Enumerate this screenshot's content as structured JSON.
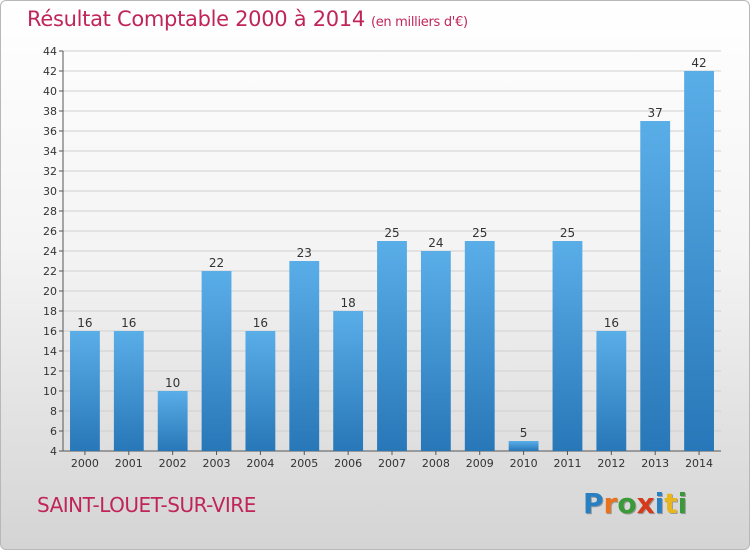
{
  "title": "Résultat Comptable 2000 à 2014",
  "subtitle": "(en milliers d'€)",
  "location": "SAINT-LOUET-SUR-VIRE",
  "brand": {
    "name": "Proxiti",
    "letter_colors": [
      "#2a7fc1",
      "#e8731c",
      "#3a9a3a",
      "#d63a1c",
      "#2a7fc1",
      "#e8b61c",
      "#3a9a3a"
    ]
  },
  "colors": {
    "title": "#c0255a",
    "bar_top": "#5aaee8",
    "bar_bottom": "#2877b8"
  },
  "chart_data": {
    "type": "bar",
    "categories": [
      "2000",
      "2001",
      "2002",
      "2003",
      "2004",
      "2005",
      "2006",
      "2007",
      "2008",
      "2009",
      "2010",
      "2011",
      "2012",
      "2013",
      "2014"
    ],
    "values": [
      16,
      16,
      10,
      22,
      16,
      23,
      18,
      25,
      24,
      25,
      5,
      25,
      16,
      37,
      42
    ],
    "ylim": [
      4,
      44
    ],
    "yticks": [
      4,
      6,
      8,
      10,
      12,
      14,
      16,
      18,
      20,
      22,
      24,
      26,
      28,
      30,
      32,
      34,
      36,
      38,
      40,
      42,
      44
    ],
    "grid": true,
    "data_labels": true
  }
}
